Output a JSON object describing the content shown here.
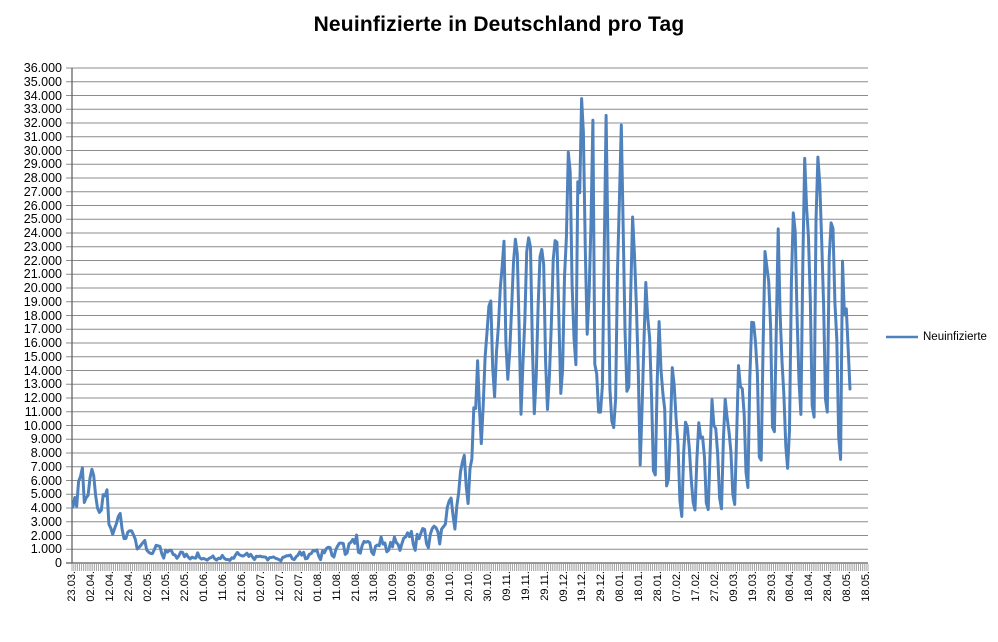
{
  "colors": {
    "line": "#4F81BD",
    "grid": "#8C8C8C",
    "axis": "#595959",
    "background": "#FFFFFF",
    "text": "#000000"
  },
  "chart_data": {
    "type": "line",
    "title": "Neuinfizierte in Deutschland pro Tag",
    "xlabel": "",
    "ylabel": "",
    "grid": "horizontal",
    "ylim": [
      0,
      36000
    ],
    "y_tick_step": 1000,
    "y_tick_labels": [
      "36.000",
      "35.000",
      "34.000",
      "33.000",
      "32.000",
      "31.000",
      "30.000",
      "29.000",
      "28.000",
      "27.000",
      "26.000",
      "25.000",
      "24.000",
      "23.000",
      "22.000",
      "21.000",
      "20.000",
      "19.000",
      "18.000",
      "17.000",
      "16.000",
      "15.000",
      "14.000",
      "13.000",
      "12.000",
      "11.000",
      "10.000",
      "9.000",
      "8.000",
      "7.000",
      "6.000",
      "5.000",
      "4.000",
      "3.000",
      "2.000",
      "1.000",
      "0"
    ],
    "x_tick_labels": [
      "23.03.",
      "02.04.",
      "12.04.",
      "22.04.",
      "02.05.",
      "12.05.",
      "22.05.",
      "01.06.",
      "11.06.",
      "21.06.",
      "02.07.",
      "12.07.",
      "22.07.",
      "01.08.",
      "11.08.",
      "21.08.",
      "31.08.",
      "10.09.",
      "20.09.",
      "30.09.",
      "10.10.",
      "20.10.",
      "30.10.",
      "09.11.",
      "19.11.",
      "29.11.",
      "09.12.",
      "19.12.",
      "29.12.",
      "08.01.",
      "18.01.",
      "28.01.",
      "07.02.",
      "17.02.",
      "27.02.",
      "09.03.",
      "19.03.",
      "29.03.",
      "08.04.",
      "18.04.",
      "28.04.",
      "08.05.",
      "18.05."
    ],
    "x_tick_interval": 10,
    "x_axis_slot_count": 421,
    "legend": {
      "position": "right",
      "entries": [
        {
          "label": "Neuinfizierte",
          "color": "#4F81BD"
        }
      ]
    },
    "series": [
      {
        "name": "Neuinfizierte",
        "color": "#4F81BD",
        "values": [
          4062,
          4764,
          4118,
          5940,
          6294,
          6922,
          4400,
          4751,
          4923,
          6173,
          6813,
          6365,
          4933,
          3990,
          3677,
          3834,
          4974,
          4885,
          5323,
          2821,
          2537,
          2082,
          2486,
          2866,
          3380,
          3609,
          2458,
          1775,
          1785,
          2237,
          2352,
          2337,
          2055,
          1737,
          1018,
          1144,
          1304,
          1478,
          1639,
          945,
          793,
          697,
          685,
          947,
          1284,
          1251,
          1209,
          667,
          357,
          933,
          798,
          933,
          913,
          620,
          583,
          342,
          513,
          797,
          777,
          460,
          638,
          431,
          289,
          432,
          362,
          353,
          741,
          391,
          286,
          333,
          278,
          213,
          342,
          394,
          507,
          301,
          214,
          350,
          318,
          555,
          348,
          258,
          252,
          192,
          378,
          345,
          580,
          770,
          601,
          537,
          503,
          587,
          712,
          477,
          630,
          422,
          256,
          498,
          466,
          503,
          454,
          446,
          422,
          219,
          390,
          397,
          442,
          356,
          305,
          248,
          159,
          412,
          444,
          534,
          529,
          583,
          305,
          249,
          454,
          569,
          815,
          569,
          781,
          305,
          340,
          633,
          684,
          902,
          870,
          955,
          509,
          240,
          879,
          741,
          1045,
          1147,
          1122,
          555,
          436,
          966,
          1226,
          1445,
          1449,
          1415,
          625,
          733,
          1390,
          1510,
          1707,
          1427,
          2034,
          782,
          711,
          1278,
          1576,
          1507,
          1571,
          1479,
          785,
          610,
          1218,
          1311,
          1256,
          1892,
          1378,
          1453,
          814,
          940,
          1499,
          1176,
          1892,
          1484,
          1345,
          920,
          1407,
          1821,
          1901,
          2194,
          1916,
          2297,
          1345,
          922,
          2089,
          1769,
          2143,
          2507,
          2442,
          1411,
          1111,
          2089,
          2503,
          2673,
          2563,
          2279,
          1382,
          2467,
          2639,
          2828,
          4058,
          4516,
          4721,
          3483,
          2467,
          4122,
          5132,
          6638,
          7334,
          7830,
          5587,
          4325,
          6868,
          7595,
          11287,
          11242,
          14714,
          11176,
          8685,
          11409,
          14964,
          16774,
          18681,
          19059,
          14177,
          12097,
          15352,
          17214,
          19990,
          21506,
          23399,
          16017,
          13363,
          15332,
          18487,
          21866,
          23542,
          22461,
          16947,
          10824,
          14419,
          17561,
          22609,
          23648,
          22964,
          15741,
          10864,
          13554,
          18633,
          22268,
          22806,
          21695,
          14611,
          11169,
          13604,
          17270,
          22046,
          23449,
          23318,
          17767,
          12332,
          14054,
          20815,
          23679,
          29875,
          28438,
          20200,
          16362,
          14432,
          27728,
          26923,
          33777,
          31300,
          22771,
          16643,
          19528,
          24740,
          32195,
          14455,
          13755,
          10976,
          10976,
          12892,
          22459,
          32552,
          22924,
          12690,
          10315,
          9847,
          11897,
          21237,
          26391,
          31849,
          24694,
          16946,
          12497,
          12802,
          19600,
          25164,
          22368,
          18678,
          13882,
          7141,
          11369,
          15974,
          20398,
          17862,
          16417,
          12257,
          6729,
          6408,
          13202,
          17553,
          14022,
          12321,
          11192,
          5608,
          6114,
          9705,
          14211,
          12908,
          10485,
          8616,
          4535,
          3379,
          8072,
          10237,
          9860,
          8354,
          6114,
          4426,
          3856,
          7556,
          10207,
          9113,
          9164,
          7676,
          4369,
          3883,
          8007,
          11869,
          9997,
          9762,
          7890,
          4732,
          3943,
          9019,
          11912,
          10580,
          9557,
          8103,
          5011,
          4252,
          9146,
          14356,
          12834,
          12674,
          10790,
          6604,
          5480,
          13435,
          17504,
          17482,
          16033,
          13733,
          7709,
          7485,
          15813,
          22657,
          21573,
          20472,
          17176,
          9872,
          9549,
          17051,
          24300,
          18129,
          14661,
          12196,
          8497,
          6885,
          9677,
          20407,
          25464,
          24097,
          17855,
          13245,
          10810,
          21693,
          29426,
          25831,
          23804,
          19185,
          11437,
          10609,
          24884,
          29518,
          27543,
          23392,
          18773,
          11907,
          10976,
          22231,
          24736,
          24329,
          18935,
          16290,
          9160,
          7534,
          21953,
          18034,
          18485,
          15685,
          12656
        ]
      }
    ]
  }
}
